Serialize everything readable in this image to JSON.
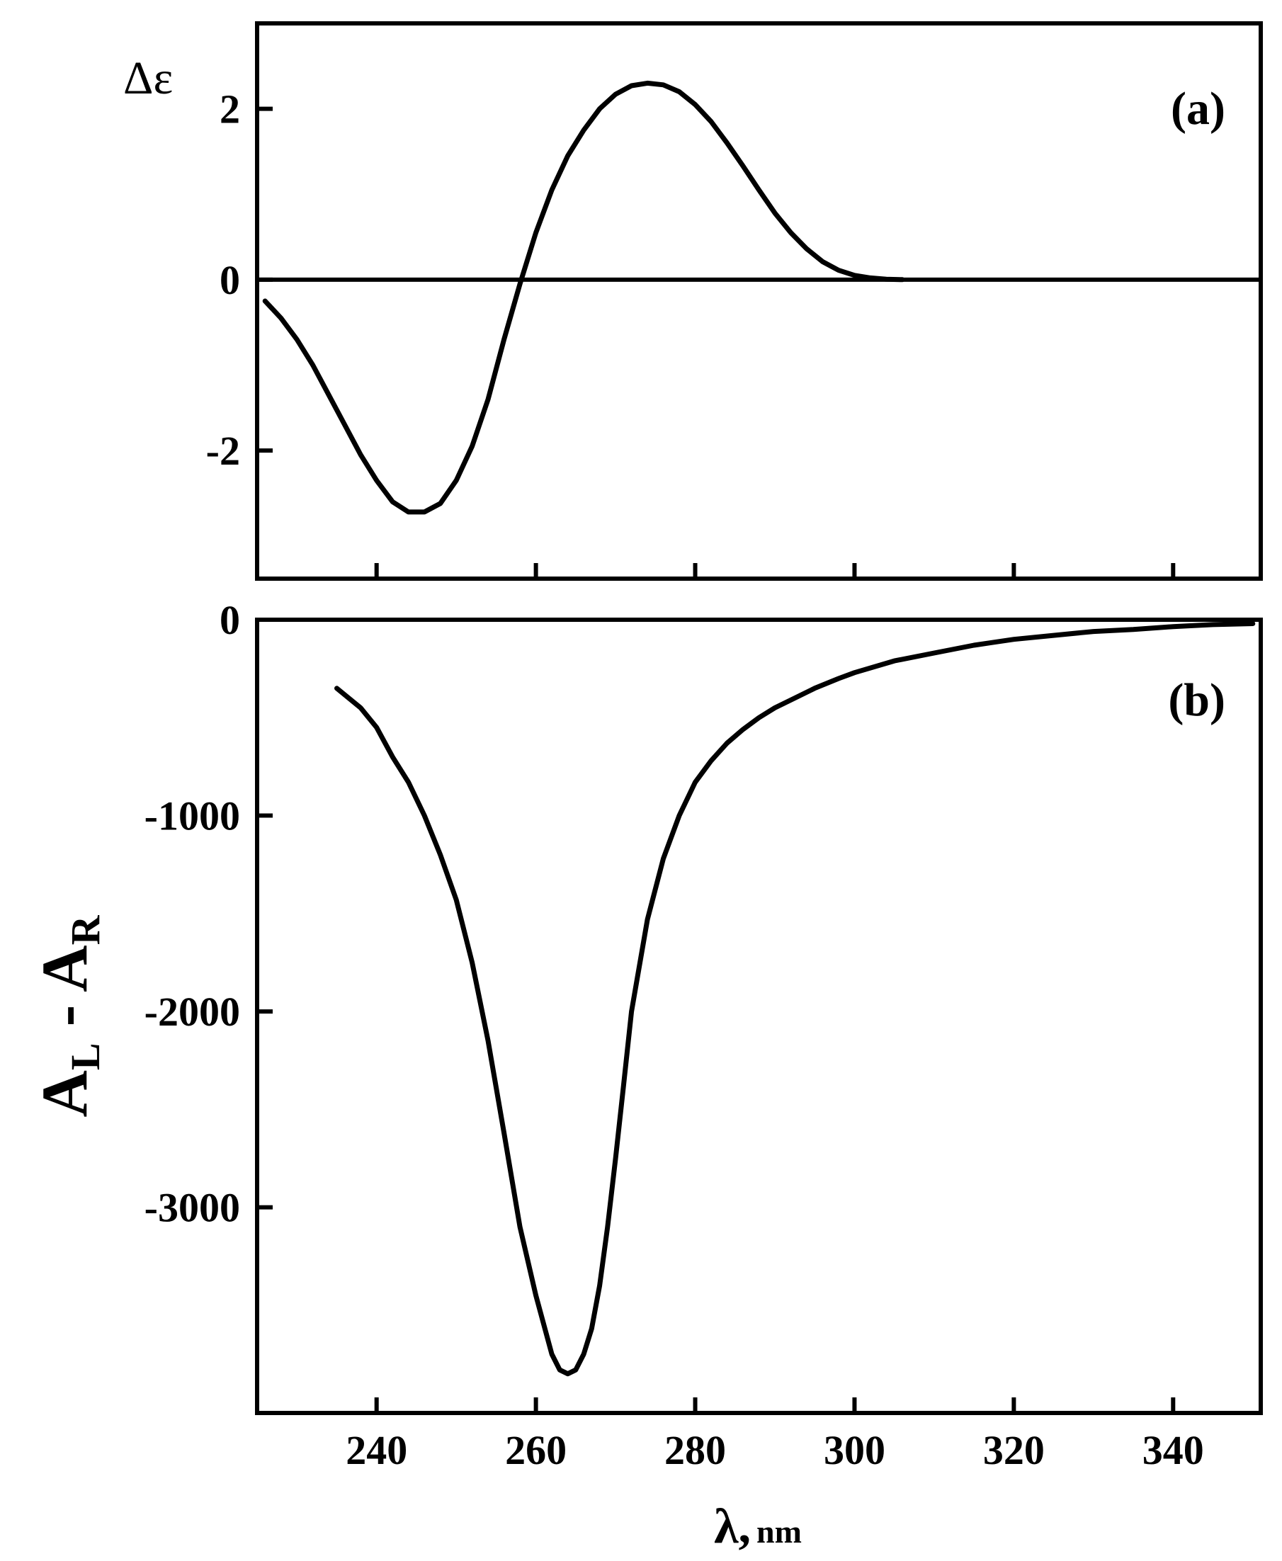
{
  "chart_data": [
    {
      "type": "line",
      "panel_label": "(a)",
      "ylabel": "Δε",
      "xlim": [
        225,
        351
      ],
      "ylim": [
        -3.5,
        3.0
      ],
      "yticks": [
        2,
        0,
        -2
      ],
      "ytick_labels": [
        "2",
        "0",
        "-2"
      ],
      "xticks": [
        240,
        260,
        280,
        300,
        320,
        340
      ],
      "zero_line": true,
      "grid": false,
      "series": [
        {
          "x": [
            226,
            228,
            230,
            232,
            234,
            236,
            238,
            240,
            242,
            244,
            246,
            248,
            250,
            252,
            254,
            256,
            258,
            260,
            262,
            264,
            266,
            268,
            270,
            272,
            274,
            276,
            278,
            280,
            282,
            284,
            286,
            288,
            290,
            292,
            294,
            296,
            298,
            300,
            302,
            304,
            306
          ],
          "y": [
            -0.25,
            -0.45,
            -0.7,
            -1.0,
            -1.35,
            -1.7,
            -2.05,
            -2.35,
            -2.6,
            -2.72,
            -2.72,
            -2.62,
            -2.35,
            -1.95,
            -1.4,
            -0.7,
            -0.05,
            0.55,
            1.05,
            1.45,
            1.75,
            2.0,
            2.17,
            2.27,
            2.3,
            2.28,
            2.2,
            2.05,
            1.85,
            1.6,
            1.33,
            1.05,
            0.78,
            0.55,
            0.36,
            0.21,
            0.11,
            0.05,
            0.02,
            0.005,
            0.0
          ]
        }
      ]
    },
    {
      "type": "line",
      "panel_label": "(b)",
      "ylabel_main": "A",
      "ylabel_sub1": "L",
      "ylabel_sep": " - ",
      "ylabel_sub2": "R",
      "xlabel_symbol": "λ,",
      "xlabel_unit": "nm",
      "xlim": [
        225,
        351
      ],
      "ylim": [
        -4050,
        0
      ],
      "yticks": [
        0,
        -1000,
        -2000,
        -3000
      ],
      "ytick_labels": [
        "0",
        "-1000",
        "-2000",
        "-3000"
      ],
      "xticks": [
        240,
        260,
        280,
        300,
        320,
        340
      ],
      "xtick_labels": [
        "240",
        "260",
        "280",
        "300",
        "320",
        "340"
      ],
      "grid": false,
      "series": [
        {
          "x": [
            235,
            238,
            240,
            242,
            244,
            246,
            248,
            250,
            252,
            254,
            256,
            258,
            260,
            262,
            263,
            264,
            265,
            266,
            267,
            268,
            269,
            270,
            271,
            272,
            274,
            276,
            278,
            280,
            282,
            284,
            286,
            288,
            290,
            292,
            295,
            298,
            300,
            305,
            310,
            315,
            320,
            325,
            330,
            335,
            340,
            345,
            350
          ],
          "y": [
            -350,
            -450,
            -550,
            -700,
            -830,
            -1000,
            -1200,
            -1430,
            -1750,
            -2150,
            -2620,
            -3100,
            -3450,
            -3750,
            -3830,
            -3850,
            -3830,
            -3750,
            -3620,
            -3400,
            -3100,
            -2750,
            -2380,
            -2000,
            -1530,
            -1220,
            -1000,
            -830,
            -720,
            -630,
            -560,
            -500,
            -450,
            -410,
            -350,
            -300,
            -270,
            -210,
            -170,
            -130,
            -100,
            -80,
            -60,
            -50,
            -35,
            -25,
            -20
          ]
        }
      ]
    }
  ]
}
